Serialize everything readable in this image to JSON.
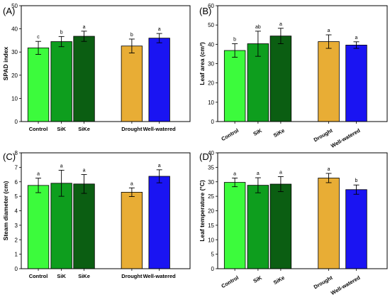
{
  "colors": {
    "Control": "#3cfb3c",
    "SiK": "#0e9e1e",
    "SiKe": "#0b5e12",
    "Drought": "#e8ad35",
    "Well-watered": "#1a14f2",
    "axis": "#000000",
    "errorbar": "#000000"
  },
  "chart_data": [
    {
      "panel": "(A)",
      "type": "bar",
      "ylabel": "SPAD index",
      "ylim": [
        0,
        50
      ],
      "yticks": [
        "0",
        "10",
        "20",
        "30",
        "40",
        "50"
      ],
      "categories": [
        "Control",
        "SiK",
        "SiKe",
        "Drought",
        "Well-watered"
      ],
      "values": [
        31.8,
        34.5,
        36.8,
        32.6,
        36.0
      ],
      "errors": [
        2.8,
        2.2,
        2.2,
        3.0,
        2.0
      ],
      "letters": [
        "c",
        "b",
        "a",
        "b",
        "a"
      ],
      "tick_label_rotation": 0
    },
    {
      "panel": "(B)",
      "type": "bar",
      "ylabel": "Leaf area (cm²)",
      "ylim": [
        0,
        60
      ],
      "yticks": [
        "0",
        "10",
        "20",
        "30",
        "40",
        "50",
        "60"
      ],
      "categories": [
        "Control",
        "SiK",
        "SiKe",
        "Drought",
        "Well-watered"
      ],
      "values": [
        36.8,
        40.3,
        44.3,
        41.4,
        39.6
      ],
      "errors": [
        3.5,
        6.5,
        4.0,
        3.5,
        1.7
      ],
      "letters": [
        "b",
        "ab",
        "a",
        "a",
        "a"
      ],
      "tick_label_rotation": 30
    },
    {
      "panel": "(C)",
      "type": "bar",
      "ylabel": "Steam diameter (cm)",
      "ylim": [
        0,
        8
      ],
      "yticks": [
        "0",
        "1",
        "2",
        "3",
        "4",
        "5",
        "6",
        "7",
        "8"
      ],
      "categories": [
        "Control",
        "SiK",
        "SiKe",
        "Drought",
        "Well-watered"
      ],
      "values": [
        5.75,
        5.9,
        5.85,
        5.28,
        6.38
      ],
      "errors": [
        0.5,
        0.9,
        0.65,
        0.3,
        0.45
      ],
      "letters": [
        "a",
        "a",
        "a",
        "a",
        "a"
      ],
      "tick_label_rotation": 0
    },
    {
      "panel": "(D)",
      "type": "bar",
      "ylabel": "Leaf temperature (°C)",
      "ylim": [
        0,
        40
      ],
      "yticks": [
        "0",
        "5",
        "10",
        "15",
        "20",
        "25",
        "30",
        "35",
        "40"
      ],
      "categories": [
        "Control",
        "SiK",
        "SiKe",
        "Drought",
        "Well-watered"
      ],
      "values": [
        29.8,
        28.8,
        29.2,
        31.3,
        27.3
      ],
      "errors": [
        1.5,
        2.6,
        2.6,
        1.6,
        1.6
      ],
      "letters": [
        "a",
        "a",
        "a",
        "a",
        "b"
      ],
      "tick_label_rotation": 30
    }
  ]
}
